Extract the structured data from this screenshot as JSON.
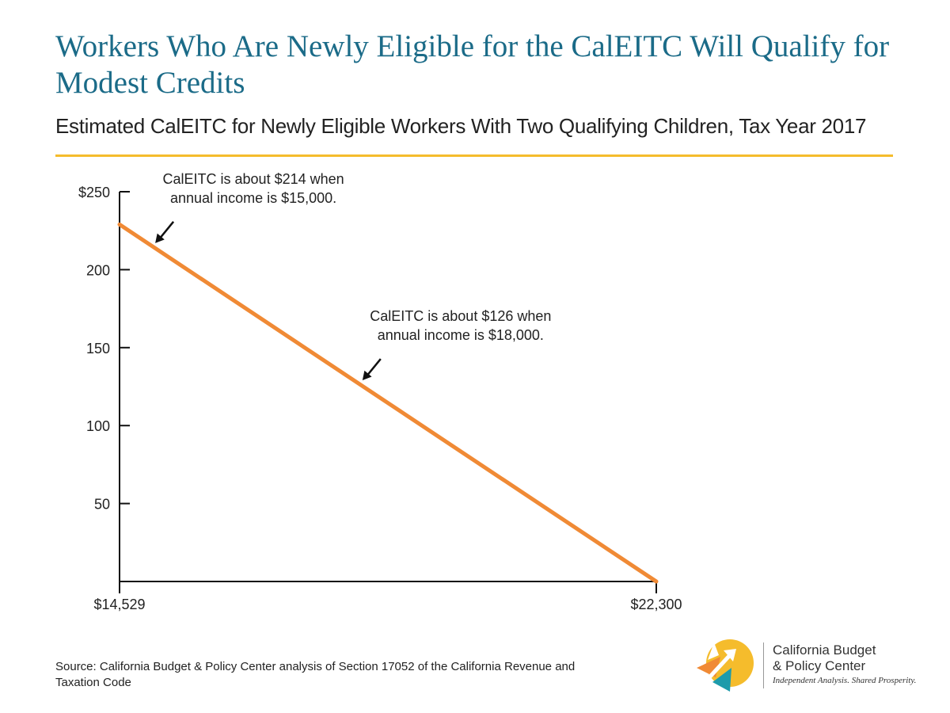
{
  "header": {
    "title": "Workers Who Are Newly Eligible for the CalEITC Will Qualify for Modest Credits",
    "subtitle": "Estimated CalEITC for Newly Eligible Workers With Two Qualifying Children, Tax Year 2017"
  },
  "colors": {
    "title": "#1b6b88",
    "rule": "#f5bc2c",
    "line": "#f08a35",
    "axis": "#111111"
  },
  "chart_data": {
    "type": "line",
    "title": "Workers Who Are Newly Eligible for the CalEITC Will Qualify for Modest Credits",
    "subtitle": "Estimated CalEITC for Newly Eligible Workers With Two Qualifying Children, Tax Year 2017",
    "xlabel": "",
    "ylabel": "",
    "xlim": [
      14529,
      22300
    ],
    "ylim": [
      0,
      250
    ],
    "x_tick_labels": [
      {
        "value": 14529,
        "label": "$14,529"
      },
      {
        "value": 22300,
        "label": "$22,300"
      }
    ],
    "y_ticks": [
      {
        "value": 250,
        "label": "$250"
      },
      {
        "value": 200,
        "label": "200"
      },
      {
        "value": 150,
        "label": "150"
      },
      {
        "value": 100,
        "label": "100"
      },
      {
        "value": 50,
        "label": "50"
      }
    ],
    "series": [
      {
        "x": [
          14529,
          22300
        ],
        "y": [
          229,
          0
        ]
      }
    ],
    "annotations": [
      {
        "lines": [
          "CalEITC is about $214 when",
          "annual income is $15,000."
        ],
        "x": 15000,
        "y": 214
      },
      {
        "lines": [
          "CalEITC is about $126 when",
          "annual income is $18,000."
        ],
        "x": 18000,
        "y": 126
      }
    ],
    "grid": false,
    "legend": "none"
  },
  "footer": {
    "source_line1": "Source: California Budget & Policy Center analysis of Section 17052 of the California Revenue and",
    "source_line2": "Taxation Code"
  },
  "logo": {
    "name_line1": "California Budget",
    "name_line2": "& Policy Center",
    "tagline": "Independent Analysis. Shared Prosperity."
  }
}
